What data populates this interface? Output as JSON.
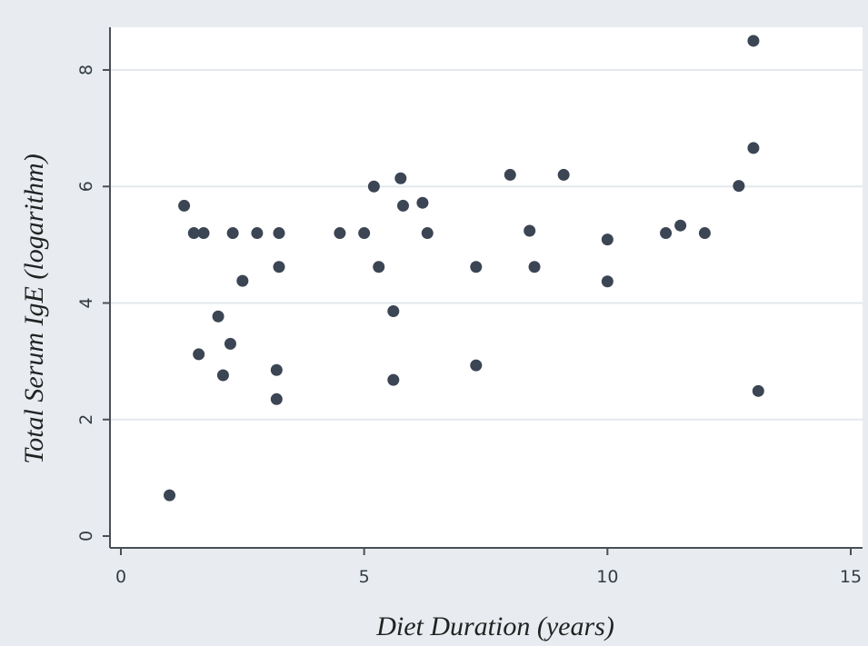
{
  "chart_data": {
    "type": "scatter",
    "title": "",
    "xlabel": "Diet Duration (years)",
    "ylabel": "Total Serum IgE (logarithm)",
    "xlim": [
      0,
      15
    ],
    "ylim": [
      0,
      8
    ],
    "xticks": [
      "0",
      "5",
      "10",
      "15"
    ],
    "yticks": [
      "0",
      "2",
      "4",
      "6",
      "8"
    ],
    "grid": true,
    "legend": "none",
    "colors": {
      "background": "#e8ecf0",
      "plot_area": "#ffffff",
      "gridline": "#e4e8ec",
      "axis": "#4a4f55",
      "marker": "#3b4554"
    },
    "points": [
      {
        "x": 1.0,
        "y": 0.7
      },
      {
        "x": 1.3,
        "y": 5.67
      },
      {
        "x": 1.5,
        "y": 5.2
      },
      {
        "x": 1.6,
        "y": 3.12
      },
      {
        "x": 1.7,
        "y": 5.2
      },
      {
        "x": 2.0,
        "y": 3.77
      },
      {
        "x": 2.1,
        "y": 2.76
      },
      {
        "x": 2.25,
        "y": 3.3
      },
      {
        "x": 2.3,
        "y": 5.2
      },
      {
        "x": 2.5,
        "y": 4.38
      },
      {
        "x": 2.8,
        "y": 5.2
      },
      {
        "x": 3.2,
        "y": 2.85
      },
      {
        "x": 3.2,
        "y": 2.35
      },
      {
        "x": 3.25,
        "y": 5.2
      },
      {
        "x": 3.25,
        "y": 4.62
      },
      {
        "x": 4.5,
        "y": 5.2
      },
      {
        "x": 5.0,
        "y": 5.2
      },
      {
        "x": 5.2,
        "y": 6.0
      },
      {
        "x": 5.3,
        "y": 4.62
      },
      {
        "x": 5.6,
        "y": 3.86
      },
      {
        "x": 5.6,
        "y": 2.68
      },
      {
        "x": 5.75,
        "y": 6.14
      },
      {
        "x": 5.8,
        "y": 5.67
      },
      {
        "x": 6.2,
        "y": 5.72
      },
      {
        "x": 6.3,
        "y": 5.2
      },
      {
        "x": 7.3,
        "y": 4.62
      },
      {
        "x": 7.3,
        "y": 2.93
      },
      {
        "x": 8.0,
        "y": 6.2
      },
      {
        "x": 8.4,
        "y": 5.24
      },
      {
        "x": 8.5,
        "y": 4.62
      },
      {
        "x": 9.1,
        "y": 6.2
      },
      {
        "x": 10.0,
        "y": 5.09
      },
      {
        "x": 10.0,
        "y": 4.37
      },
      {
        "x": 11.2,
        "y": 5.2
      },
      {
        "x": 11.5,
        "y": 5.33
      },
      {
        "x": 12.0,
        "y": 5.2
      },
      {
        "x": 12.7,
        "y": 6.01
      },
      {
        "x": 13.0,
        "y": 8.5
      },
      {
        "x": 13.0,
        "y": 6.66
      },
      {
        "x": 13.1,
        "y": 2.49
      }
    ]
  }
}
